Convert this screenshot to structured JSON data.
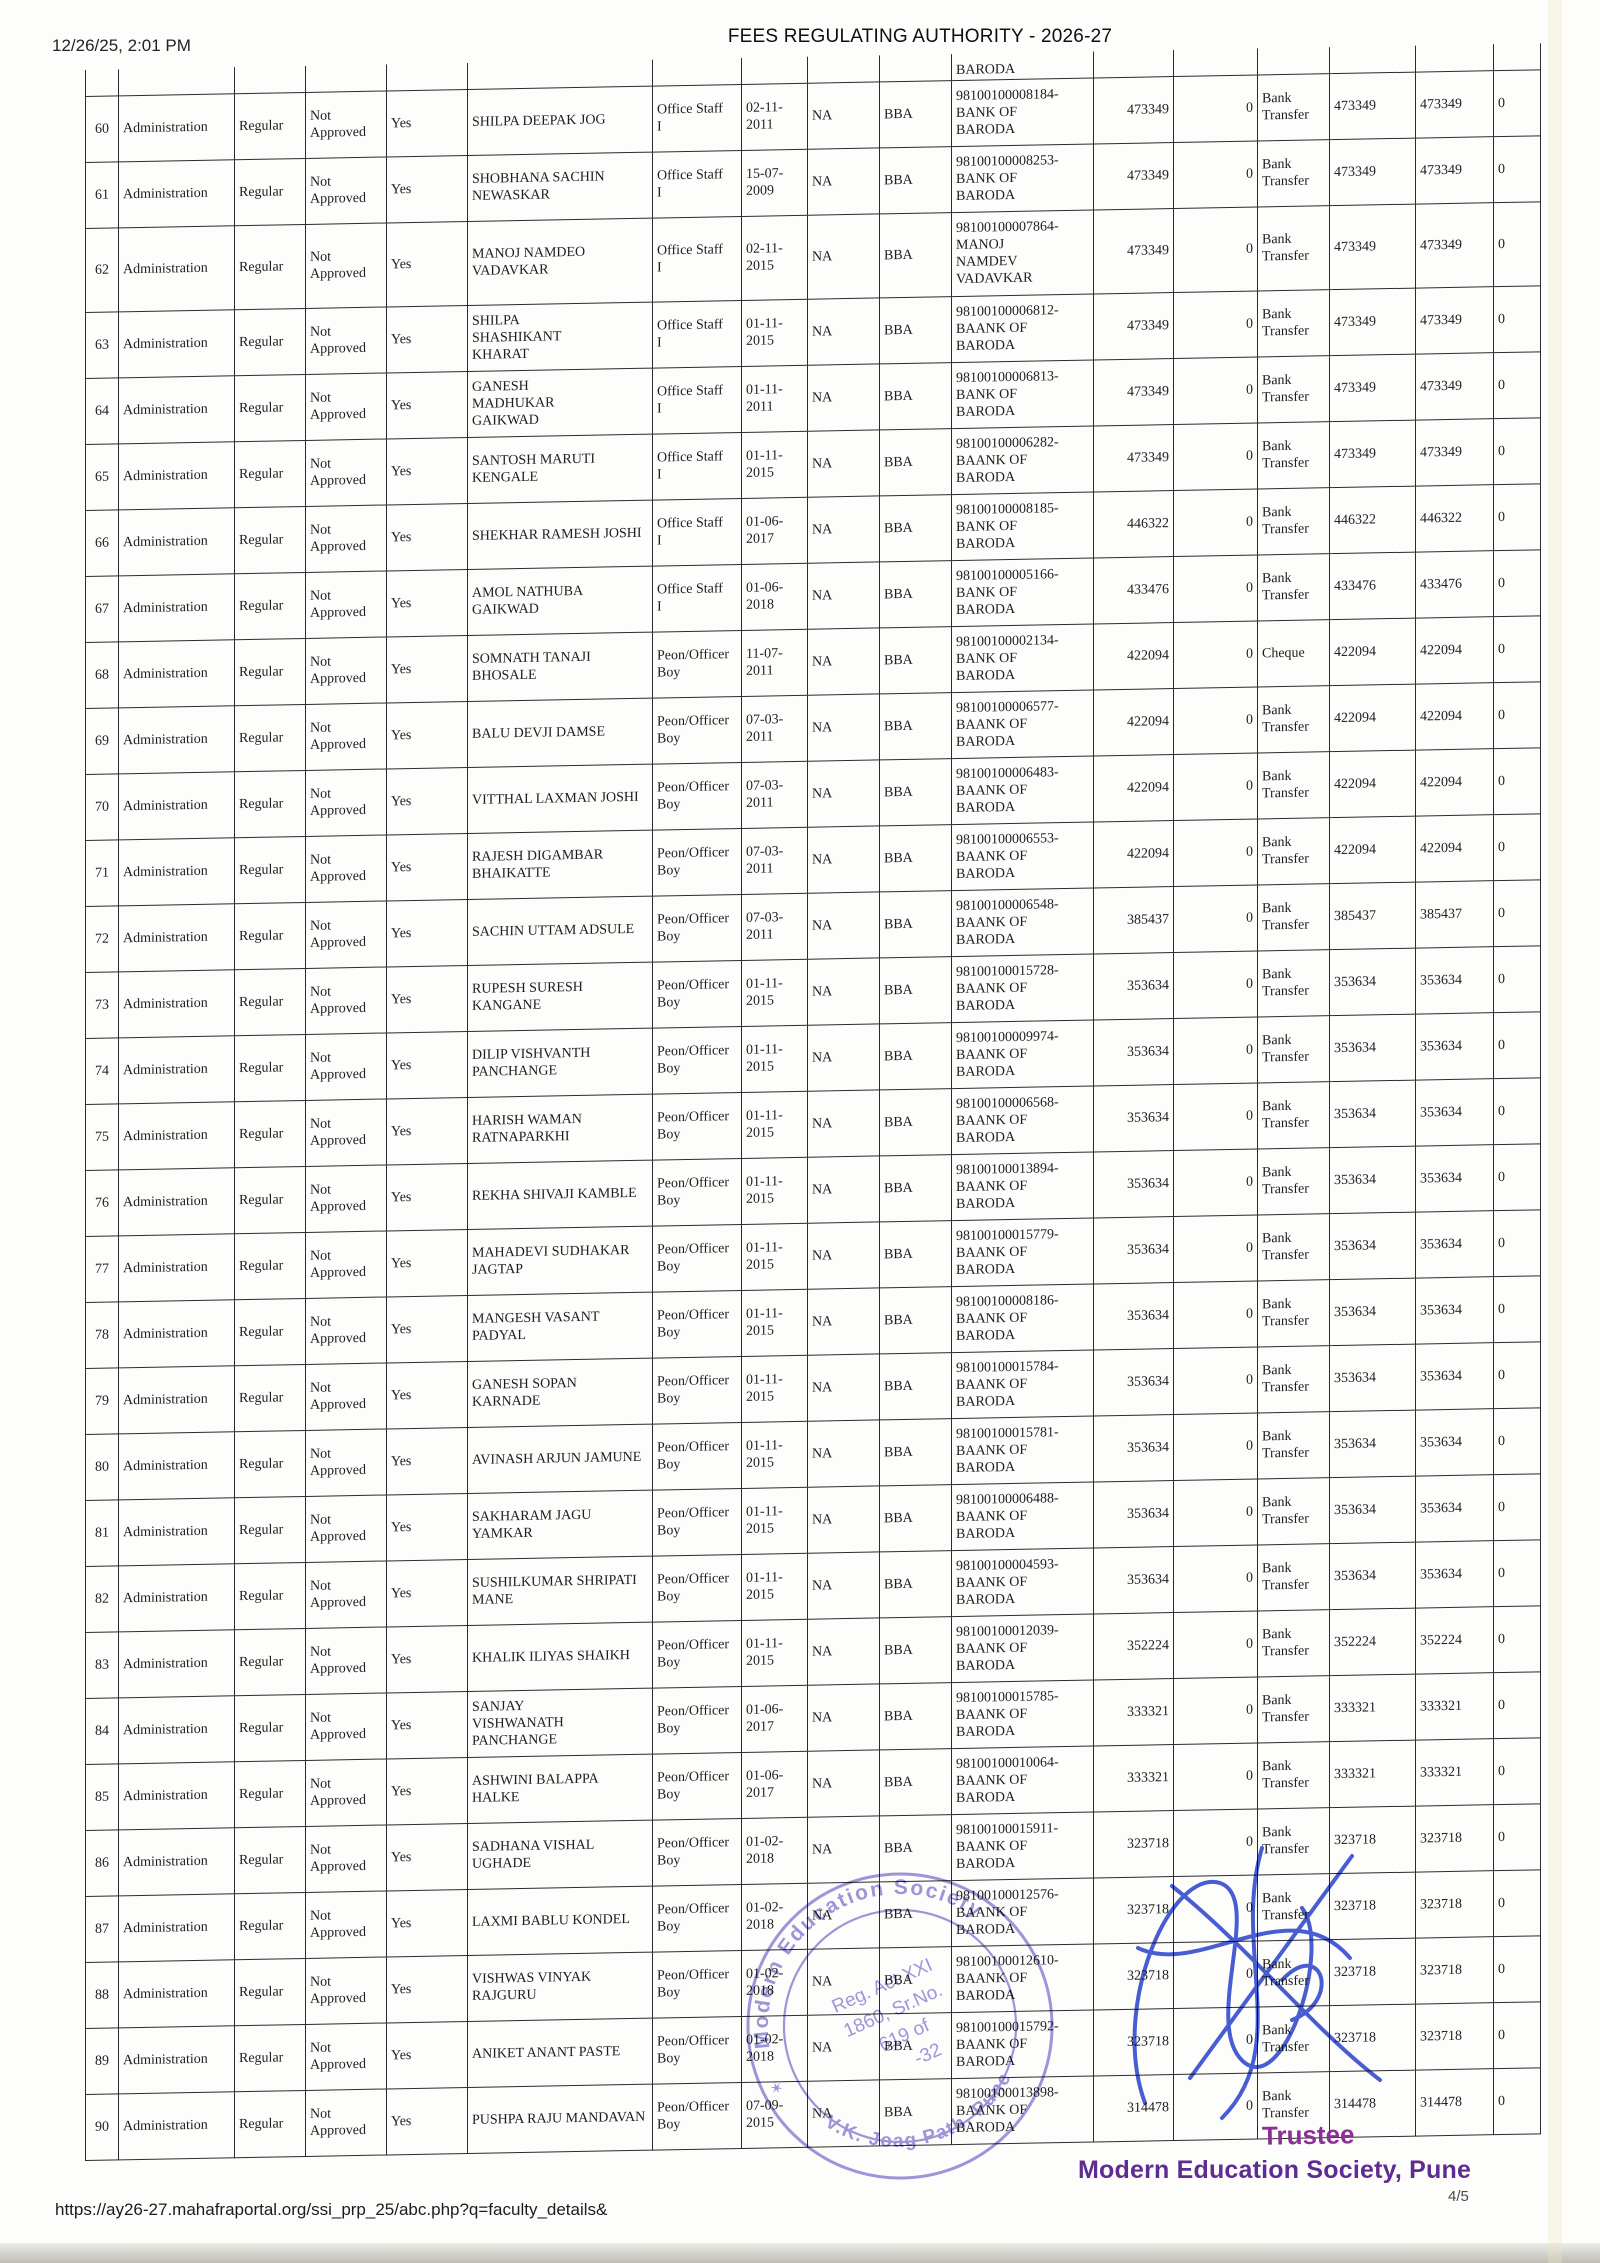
{
  "page": {
    "printed_datetime": "12/26/25, 2:01 PM",
    "title": "FEES REGULATING AUTHORITY - 2026-27",
    "footer_url": "https://ay26-27.mahafraportal.org/ssi_prp_25/abc.php?q=faculty_details&",
    "page_number": "4/5"
  },
  "signature_block": {
    "trustee_label": "Trustee",
    "organization": "Modern Education Society, Pune",
    "ink_color": "#2f47cf",
    "text_color": "#5f2c92"
  },
  "stamp": {
    "ring_top_text": "Modern Education Society",
    "ring_bottom_text": "V.K. Joag Path, Pune",
    "inner_lines": [
      "Reg. Act XXI",
      "1860, Sr.No.",
      "619 of",
      "-32"
    ],
    "star": "✶",
    "color": "#7a71cf"
  },
  "table": {
    "constants": {
      "department": "Administration",
      "staff_type": "Regular",
      "approval_status": "Not Approved",
      "flag": "Yes",
      "na": "NA",
      "course": "BBA",
      "zero": "0"
    },
    "partial_row": {
      "bank_text": "BARODA"
    },
    "row_fields": [
      "sr_no",
      "name",
      "designation",
      "joining_date",
      "bank_account",
      "bank_name",
      "salary",
      "payment_mode",
      "amount_paid",
      "net_amount"
    ],
    "rows": [
      [
        "60",
        "SHILPA DEEPAK JOG",
        "Office Staff\nI",
        "02-11-\n2011",
        "98100100008184-",
        "BANK OF\nBARODA",
        "473349",
        "Bank Transfer",
        "473349",
        "473349"
      ],
      [
        "61",
        "SHOBHANA SACHIN NEWASKAR",
        "Office Staff\nI",
        "15-07-\n2009",
        "98100100008253-",
        "BANK OF\nBARODA",
        "473349",
        "Bank Transfer",
        "473349",
        "473349"
      ],
      [
        "62",
        "MANOJ NAMDEO VADAVKAR",
        "Office Staff\nI",
        "02-11-\n2015",
        "98100100007864-",
        "MANOJ\nNAMDEV\nVADAVKAR",
        "473349",
        "Bank Transfer",
        "473349",
        "473349"
      ],
      [
        "63",
        "SHILPA\nSHASHIKANT\nKHARAT",
        "Office Staff\nI",
        "01-11-\n2015",
        "98100100006812-",
        "BAANK OF\nBARODA",
        "473349",
        "Bank Transfer",
        "473349",
        "473349"
      ],
      [
        "64",
        "GANESH\nMADHUKAR\nGAIKWAD",
        "Office Staff\nI",
        "01-11-\n2011",
        "98100100006813-",
        "BANK OF\nBARODA",
        "473349",
        "Bank Transfer",
        "473349",
        "473349"
      ],
      [
        "65",
        "SANTOSH MARUTI KENGALE",
        "Office Staff\nI",
        "01-11-\n2015",
        "98100100006282-",
        "BAANK OF\nBARODA",
        "473349",
        "Bank Transfer",
        "473349",
        "473349"
      ],
      [
        "66",
        "SHEKHAR RAMESH JOSHI",
        "Office Staff\nI",
        "01-06-\n2017",
        "98100100008185-",
        "BANK OF\nBARODA",
        "446322",
        "Bank Transfer",
        "446322",
        "446322"
      ],
      [
        "67",
        "AMOL NATHUBA GAIKWAD",
        "Office Staff\nI",
        "01-06-\n2018",
        "98100100005166-",
        "BANK OF\nBARODA",
        "433476",
        "Bank Transfer",
        "433476",
        "433476"
      ],
      [
        "68",
        "SOMNATH TANAJI BHOSALE",
        "Peon/Officer\nBoy",
        "11-07-\n2011",
        "98100100002134-",
        "BANK OF\nBARODA",
        "422094",
        "Cheque",
        "422094",
        "422094"
      ],
      [
        "69",
        "BALU DEVJI DAMSE",
        "Peon/Officer\nBoy",
        "07-03-\n2011",
        "98100100006577-",
        "BAANK OF\nBARODA",
        "422094",
        "Bank Transfer",
        "422094",
        "422094"
      ],
      [
        "70",
        "VITTHAL LAXMAN JOSHI",
        "Peon/Officer\nBoy",
        "07-03-\n2011",
        "98100100006483-",
        "BAANK OF\nBARODA",
        "422094",
        "Bank Transfer",
        "422094",
        "422094"
      ],
      [
        "71",
        "RAJESH DIGAMBAR BHAIKATTE",
        "Peon/Officer\nBoy",
        "07-03-\n2011",
        "98100100006553-",
        "BAANK OF\nBARODA",
        "422094",
        "Bank Transfer",
        "422094",
        "422094"
      ],
      [
        "72",
        "SACHIN UTTAM ADSULE",
        "Peon/Officer\nBoy",
        "07-03-\n2011",
        "98100100006548-",
        "BAANK OF\nBARODA",
        "385437",
        "Bank Transfer",
        "385437",
        "385437"
      ],
      [
        "73",
        "RUPESH SURESH KANGANE",
        "Peon/Officer\nBoy",
        "01-11-\n2015",
        "98100100015728-",
        "BAANK OF\nBARODA",
        "353634",
        "Bank Transfer",
        "353634",
        "353634"
      ],
      [
        "74",
        "DILIP VISHVANTH PANCHANGE",
        "Peon/Officer\nBoy",
        "01-11-\n2015",
        "98100100009974-",
        "BAANK OF\nBARODA",
        "353634",
        "Bank Transfer",
        "353634",
        "353634"
      ],
      [
        "75",
        "HARISH WAMAN RATNAPARKHI",
        "Peon/Officer\nBoy",
        "01-11-\n2015",
        "98100100006568-",
        "BAANK OF\nBARODA",
        "353634",
        "Bank Transfer",
        "353634",
        "353634"
      ],
      [
        "76",
        "REKHA SHIVAJI KAMBLE",
        "Peon/Officer\nBoy",
        "01-11-\n2015",
        "98100100013894-",
        "BAANK OF\nBARODA",
        "353634",
        "Bank Transfer",
        "353634",
        "353634"
      ],
      [
        "77",
        "MAHADEVI SUDHAKAR JAGTAP",
        "Peon/Officer\nBoy",
        "01-11-\n2015",
        "98100100015779-",
        "BAANK OF\nBARODA",
        "353634",
        "Bank Transfer",
        "353634",
        "353634"
      ],
      [
        "78",
        "MANGESH VASANT PADYAL",
        "Peon/Officer\nBoy",
        "01-11-\n2015",
        "98100100008186-",
        "BAANK OF\nBARODA",
        "353634",
        "Bank Transfer",
        "353634",
        "353634"
      ],
      [
        "79",
        "GANESH SOPAN KARNADE",
        "Peon/Officer\nBoy",
        "01-11-\n2015",
        "98100100015784-",
        "BAANK OF\nBARODA",
        "353634",
        "Bank Transfer",
        "353634",
        "353634"
      ],
      [
        "80",
        "AVINASH ARJUN JAMUNE",
        "Peon/Officer\nBoy",
        "01-11-\n2015",
        "98100100015781-",
        "BAANK OF\nBARODA",
        "353634",
        "Bank Transfer",
        "353634",
        "353634"
      ],
      [
        "81",
        "SAKHARAM JAGU YAMKAR",
        "Peon/Officer\nBoy",
        "01-11-\n2015",
        "98100100006488-",
        "BAANK OF\nBARODA",
        "353634",
        "Bank Transfer",
        "353634",
        "353634"
      ],
      [
        "82",
        "SUSHILKUMAR SHRIPATI MANE",
        "Peon/Officer\nBoy",
        "01-11-\n2015",
        "98100100004593-",
        "BAANK OF\nBARODA",
        "353634",
        "Bank Transfer",
        "353634",
        "353634"
      ],
      [
        "83",
        "KHALIK ILIYAS SHAIKH",
        "Peon/Officer\nBoy",
        "01-11-\n2015",
        "98100100012039-",
        "BAANK OF\nBARODA",
        "352224",
        "Bank Transfer",
        "352224",
        "352224"
      ],
      [
        "84",
        "SANJAY\nVISHWANATH\nPANCHANGE",
        "Peon/Officer\nBoy",
        "01-06-\n2017",
        "98100100015785-",
        "BAANK OF\nBARODA",
        "333321",
        "Bank Transfer",
        "333321",
        "333321"
      ],
      [
        "85",
        "ASHWINI BALAPPA HALKE",
        "Peon/Officer\nBoy",
        "01-06-\n2017",
        "98100100010064-",
        "BAANK OF\nBARODA",
        "333321",
        "Bank Transfer",
        "333321",
        "333321"
      ],
      [
        "86",
        "SADHANA VISHAL UGHADE",
        "Peon/Officer\nBoy",
        "01-02-\n2018",
        "98100100015911-",
        "BAANK OF\nBARODA",
        "323718",
        "Bank Transfer",
        "323718",
        "323718"
      ],
      [
        "87",
        "LAXMI BABLU KONDEL",
        "Peon/Officer\nBoy",
        "01-02-\n2018",
        "98100100012576-",
        "BAANK OF\nBARODA",
        "323718",
        "Bank Transfer",
        "323718",
        "323718"
      ],
      [
        "88",
        "VISHWAS VINYAK RAJGURU",
        "Peon/Officer\nBoy",
        "01-02-\n2018",
        "98100100012610-",
        "BAANK OF\nBARODA",
        "323718",
        "Bank Transfer",
        "323718",
        "323718"
      ],
      [
        "89",
        "ANIKET ANANT PASTE",
        "Peon/Officer\nBoy",
        "01-02-\n2018",
        "98100100015792-",
        "BAANK OF\nBARODA",
        "323718",
        "Bank Transfer",
        "323718",
        "323718"
      ],
      [
        "90",
        "PUSHPA RAJU MANDAVAN",
        "Peon/Officer\nBoy",
        "07-09-\n2015",
        "98100100013898-",
        "BAANK OF\nBARODA",
        "314478",
        "Bank Transfer",
        "314478",
        "314478"
      ]
    ]
  }
}
